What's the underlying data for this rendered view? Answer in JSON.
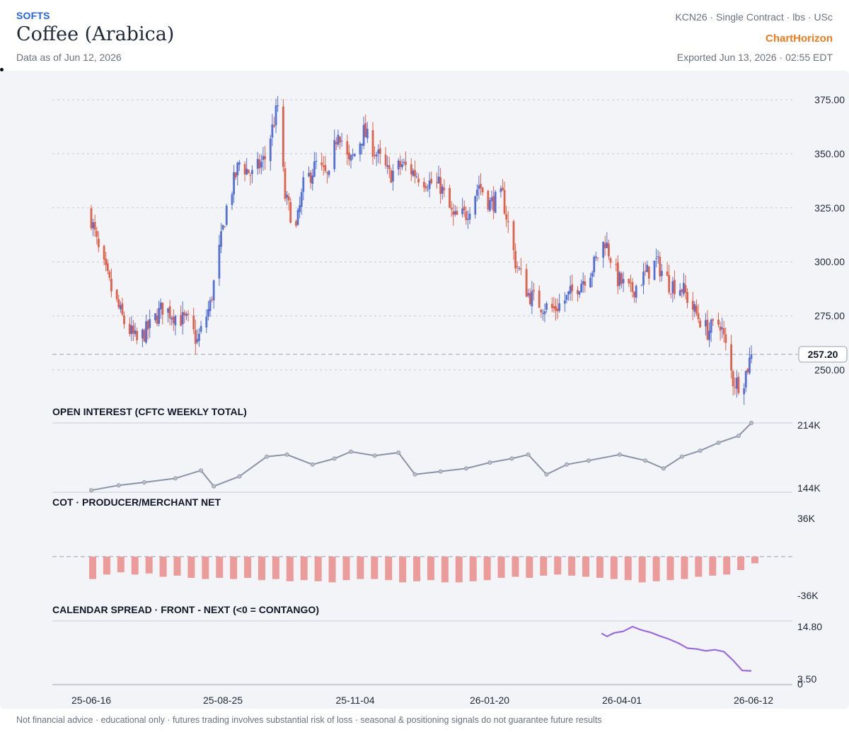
{
  "header": {
    "category": "SOFTS",
    "title": "Coffee (Arabica)",
    "as_of": "Data as of Jun 12, 2026",
    "contract": "KCN26 · Single Contract · lbs · USc",
    "brand": "ChartHorizon",
    "exported": "Exported Jun 13, 2026 · 02:55 EDT"
  },
  "footer": "Not financial advice · educational only · futures trading involves substantial risk of loss · seasonal & positioning signals do not guarantee future results",
  "colors": {
    "up": "#5470d8",
    "down": "#e0604a",
    "open_interest": "#8b93a6",
    "cot": "#ec9b9b",
    "spread": "#9b6ae0",
    "grid": "#c9ccd6"
  },
  "chart_data": [
    {
      "type": "candlestick",
      "x_axis": {
        "tick_labels": [
          "25-06-16",
          "25-08-25",
          "25-11-04",
          "26-01-20",
          "26-04-01",
          "26-06-12"
        ],
        "range": [
          "2025-06-16",
          "2026-06-12"
        ]
      },
      "y_axis": {
        "ticks": [
          250,
          275,
          300,
          325,
          350,
          375
        ],
        "tick_labels": [
          "250.00",
          "275.00",
          "300.00",
          "325.00",
          "350.00",
          "375.00"
        ],
        "range": [
          242,
          380
        ]
      },
      "last_price": 257.2,
      "last_price_label": "257.20",
      "close_anchors": [
        [
          "2025-06-16",
          320
        ],
        [
          "2025-06-20",
          305
        ],
        [
          "2025-06-27",
          287
        ],
        [
          "2025-07-04",
          272
        ],
        [
          "2025-07-11",
          263
        ],
        [
          "2025-07-18",
          270
        ],
        [
          "2025-07-25",
          279
        ],
        [
          "2025-08-01",
          275
        ],
        [
          "2025-08-08",
          272
        ],
        [
          "2025-08-13",
          263
        ],
        [
          "2025-08-20",
          280
        ],
        [
          "2025-08-25",
          305
        ],
        [
          "2025-08-29",
          325
        ],
        [
          "2025-09-05",
          346
        ],
        [
          "2025-09-12",
          340
        ],
        [
          "2025-09-19",
          348
        ],
        [
          "2025-09-26",
          372
        ],
        [
          "2025-09-30",
          330
        ],
        [
          "2025-10-06",
          315
        ],
        [
          "2025-10-10",
          335
        ],
        [
          "2025-10-17",
          345
        ],
        [
          "2025-10-24",
          338
        ],
        [
          "2025-10-29",
          362
        ],
        [
          "2025-11-04",
          345
        ],
        [
          "2025-11-07",
          350
        ],
        [
          "2025-11-12",
          360
        ],
        [
          "2025-11-19",
          350
        ],
        [
          "2025-11-26",
          340
        ],
        [
          "2025-12-03",
          345
        ],
        [
          "2025-12-10",
          341
        ],
        [
          "2025-12-17",
          337
        ],
        [
          "2025-12-24",
          335
        ],
        [
          "2025-12-31",
          320
        ],
        [
          "2026-01-07",
          322
        ],
        [
          "2026-01-14",
          336
        ],
        [
          "2026-01-20",
          327
        ],
        [
          "2026-01-27",
          330
        ],
        [
          "2026-02-03",
          300
        ],
        [
          "2026-02-10",
          285
        ],
        [
          "2026-02-17",
          280
        ],
        [
          "2026-02-24",
          278
        ],
        [
          "2026-03-03",
          283
        ],
        [
          "2026-03-10",
          290
        ],
        [
          "2026-03-17",
          297
        ],
        [
          "2026-03-24",
          310
        ],
        [
          "2026-03-31",
          292
        ],
        [
          "2026-04-07",
          286
        ],
        [
          "2026-04-14",
          293
        ],
        [
          "2026-04-21",
          300
        ],
        [
          "2026-04-28",
          290
        ],
        [
          "2026-05-05",
          288
        ],
        [
          "2026-05-12",
          277
        ],
        [
          "2026-05-19",
          268
        ],
        [
          "2026-05-26",
          272
        ],
        [
          "2026-06-02",
          245
        ],
        [
          "2026-06-07",
          243
        ],
        [
          "2026-06-12",
          257.2
        ]
      ]
    },
    {
      "type": "line",
      "title": "OPEN INTEREST (CFTC WEEKLY TOTAL)",
      "y_axis": {
        "tick_labels": [
          "144K",
          "214K"
        ],
        "range": [
          144000,
          214000
        ]
      },
      "points": [
        [
          "2025-06-16",
          146000
        ],
        [
          "2025-07-01",
          151000
        ],
        [
          "2025-07-15",
          154000
        ],
        [
          "2025-08-01",
          158000
        ],
        [
          "2025-08-15",
          166000
        ],
        [
          "2025-08-22",
          150000
        ],
        [
          "2025-09-05",
          160000
        ],
        [
          "2025-09-20",
          180000
        ],
        [
          "2025-10-01",
          182000
        ],
        [
          "2025-10-15",
          172000
        ],
        [
          "2025-10-27",
          178000
        ],
        [
          "2025-11-05",
          185000
        ],
        [
          "2025-11-18",
          181000
        ],
        [
          "2025-12-01",
          184000
        ],
        [
          "2025-12-10",
          162000
        ],
        [
          "2025-12-24",
          165000
        ],
        [
          "2026-01-07",
          168000
        ],
        [
          "2026-01-20",
          174000
        ],
        [
          "2026-02-01",
          178000
        ],
        [
          "2026-02-10",
          182000
        ],
        [
          "2026-02-20",
          162000
        ],
        [
          "2026-03-03",
          172000
        ],
        [
          "2026-03-15",
          176000
        ],
        [
          "2026-04-01",
          182000
        ],
        [
          "2026-04-15",
          176000
        ],
        [
          "2026-04-25",
          168000
        ],
        [
          "2026-05-05",
          180000
        ],
        [
          "2026-05-15",
          186000
        ],
        [
          "2026-05-25",
          194000
        ],
        [
          "2026-06-05",
          201000
        ],
        [
          "2026-06-12",
          214000
        ]
      ]
    },
    {
      "type": "bar",
      "title": "COT · PRODUCER/MERCHANT NET",
      "y_axis": {
        "tick_labels": [
          "36K",
          "-36K"
        ],
        "range": [
          -36000,
          36000
        ]
      },
      "values": [
        -20000,
        -16000,
        -14000,
        -16000,
        -15000,
        -18000,
        -17000,
        -19000,
        -20000,
        -19000,
        -20000,
        -19000,
        -21000,
        -20000,
        -22000,
        -21000,
        -22000,
        -23000,
        -21000,
        -20000,
        -20000,
        -21000,
        -23000,
        -22000,
        -21000,
        -23000,
        -23000,
        -22000,
        -21000,
        -19000,
        -18000,
        -19000,
        -17000,
        -16000,
        -17000,
        -18000,
        -19000,
        -20000,
        -21000,
        -23000,
        -22000,
        -21000,
        -20000,
        -18000,
        -17000,
        -16000,
        -12000,
        -6000
      ]
    },
    {
      "type": "line",
      "title": "CALENDAR SPREAD · FRONT - NEXT (<0 = CONTANGO)",
      "y_axis": {
        "tick_labels": [
          "14.80",
          "3.50",
          "0"
        ],
        "range": [
          0,
          16
        ]
      },
      "points": [
        [
          "2026-03-22",
          13.1
        ],
        [
          "2026-03-25",
          12.3
        ],
        [
          "2026-03-29",
          13.2
        ],
        [
          "2026-04-03",
          13.6
        ],
        [
          "2026-04-08",
          14.8
        ],
        [
          "2026-04-13",
          13.9
        ],
        [
          "2026-04-18",
          13.3
        ],
        [
          "2026-04-23",
          12.4
        ],
        [
          "2026-04-28",
          11.6
        ],
        [
          "2026-05-03",
          10.6
        ],
        [
          "2026-05-08",
          9.3
        ],
        [
          "2026-05-13",
          9.1
        ],
        [
          "2026-05-18",
          8.6
        ],
        [
          "2026-05-23",
          8.9
        ],
        [
          "2026-05-28",
          8.4
        ],
        [
          "2026-06-02",
          6.2
        ],
        [
          "2026-06-07",
          3.6
        ],
        [
          "2026-06-12",
          3.5
        ]
      ]
    }
  ]
}
